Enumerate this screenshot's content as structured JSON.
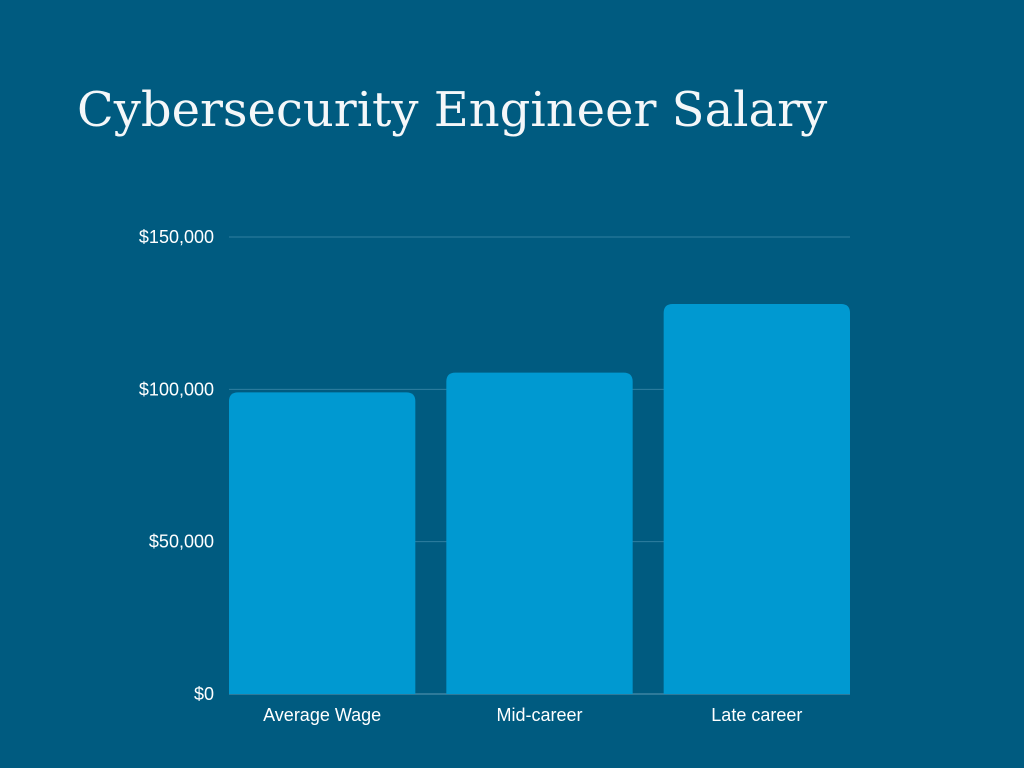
{
  "colors": {
    "background": "#005b80",
    "bar": "#0099d1",
    "text": "#ffffff"
  },
  "chart_data": {
    "type": "bar",
    "title": "Cybersecurity Engineer Salary",
    "xlabel": "",
    "ylabel": "",
    "categories": [
      "Average Wage",
      "Mid-career",
      "Late career"
    ],
    "values": [
      99000,
      105500,
      128000
    ],
    "ylim": [
      0,
      150000
    ],
    "yticks": [
      0,
      50000,
      100000,
      150000
    ],
    "ytick_labels": [
      "$0",
      "$50,000",
      "$100,000",
      "$150,000"
    ],
    "grid": true,
    "legend": "none"
  }
}
